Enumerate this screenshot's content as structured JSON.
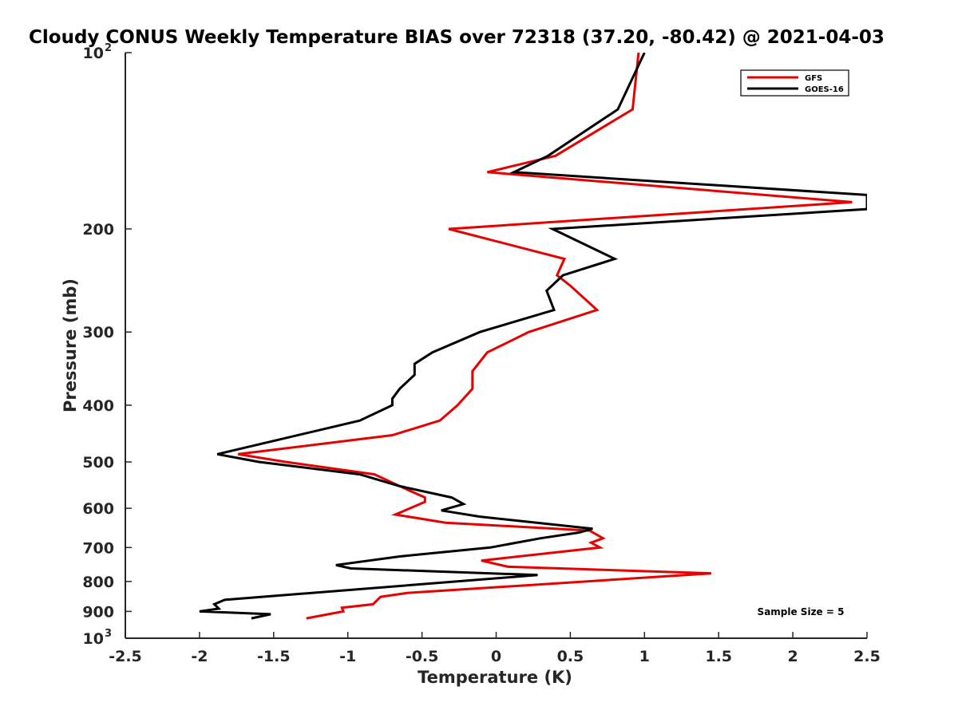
{
  "chart_data": {
    "type": "line",
    "title": "Cloudy CONUS Weekly Temperature BIAS over 72318 (37.20, -80.42) @ 2021-04-03",
    "xlabel": "Temperature (K)",
    "ylabel": "Pressure (mb)",
    "xlim": [
      -2.5,
      2.5
    ],
    "ylim": [
      100,
      1000
    ],
    "yscale": "log",
    "yreversed": true,
    "xticks": [
      "-2.5",
      "-2",
      "-1.5",
      "-1",
      "-0.5",
      "0",
      "0.5",
      "1",
      "1.5",
      "2",
      "2.5"
    ],
    "yticks": [
      {
        "value": 100,
        "base": "10",
        "exp": "2"
      },
      {
        "value": 200,
        "label": "200"
      },
      {
        "value": 300,
        "label": "300"
      },
      {
        "value": 400,
        "label": "400"
      },
      {
        "value": 500,
        "label": "500"
      },
      {
        "value": 600,
        "label": "600"
      },
      {
        "value": 700,
        "label": "700"
      },
      {
        "value": 800,
        "label": "800"
      },
      {
        "value": 900,
        "label": "900"
      },
      {
        "value": 1000,
        "base": "10",
        "exp": "3"
      }
    ],
    "legend_position": "top-right",
    "annotation": "Sample Size = 5",
    "series": [
      {
        "name": "GFS",
        "color": "#e60000",
        "points": [
          [
            0.96,
            100
          ],
          [
            0.92,
            125
          ],
          [
            0.4,
            150
          ],
          [
            -0.06,
            160
          ],
          [
            2.4,
            180
          ],
          [
            -0.32,
            200
          ],
          [
            0.46,
            225
          ],
          [
            0.41,
            240
          ],
          [
            0.5,
            250
          ],
          [
            0.68,
            275
          ],
          [
            0.22,
            300
          ],
          [
            -0.06,
            325
          ],
          [
            -0.16,
            350
          ],
          [
            -0.16,
            375
          ],
          [
            -0.26,
            400
          ],
          [
            -0.38,
            425
          ],
          [
            -0.7,
            450
          ],
          [
            -1.74,
            485
          ],
          [
            -1.42,
            500
          ],
          [
            -0.82,
            525
          ],
          [
            -0.65,
            550
          ],
          [
            -0.48,
            575
          ],
          [
            -0.48,
            585
          ],
          [
            -0.68,
            615
          ],
          [
            -0.34,
            635
          ],
          [
            0.63,
            655
          ],
          [
            0.72,
            675
          ],
          [
            0.64,
            687
          ],
          [
            0.7,
            700
          ],
          [
            -0.1,
            737
          ],
          [
            0.08,
            755
          ],
          [
            1.45,
            775
          ],
          [
            -0.6,
            837
          ],
          [
            -0.78,
            850
          ],
          [
            -0.83,
            875
          ],
          [
            -1.04,
            887
          ],
          [
            -1.03,
            900
          ],
          [
            -1.28,
            925
          ]
        ]
      },
      {
        "name": "GOES-16",
        "color": "#000000",
        "points": [
          [
            1.0,
            100
          ],
          [
            0.82,
            125
          ],
          [
            0.35,
            150
          ],
          [
            0.12,
            160
          ],
          [
            2.5,
            175
          ],
          [
            2.5,
            185
          ],
          [
            0.38,
            200
          ],
          [
            0.8,
            225
          ],
          [
            0.45,
            240
          ],
          [
            0.34,
            255
          ],
          [
            0.39,
            275
          ],
          [
            -0.11,
            300
          ],
          [
            -0.43,
            325
          ],
          [
            -0.55,
            340
          ],
          [
            -0.55,
            355
          ],
          [
            -0.65,
            375
          ],
          [
            -0.7,
            390
          ],
          [
            -0.7,
            400
          ],
          [
            -0.92,
            425
          ],
          [
            -1.88,
            485
          ],
          [
            -1.6,
            500
          ],
          [
            -0.92,
            525
          ],
          [
            -0.65,
            550
          ],
          [
            -0.3,
            575
          ],
          [
            -0.22,
            590
          ],
          [
            -0.37,
            605
          ],
          [
            -0.11,
            620
          ],
          [
            0.65,
            650
          ],
          [
            0.56,
            660
          ],
          [
            0.3,
            675
          ],
          [
            -0.04,
            700
          ],
          [
            -0.65,
            725
          ],
          [
            -1.08,
            750
          ],
          [
            -0.98,
            760
          ],
          [
            0.28,
            780
          ],
          [
            -1.83,
            860
          ],
          [
            -1.9,
            875
          ],
          [
            -1.87,
            890
          ],
          [
            -2.0,
            900
          ],
          [
            -1.52,
            910
          ],
          [
            -1.65,
            925
          ]
        ]
      }
    ]
  }
}
